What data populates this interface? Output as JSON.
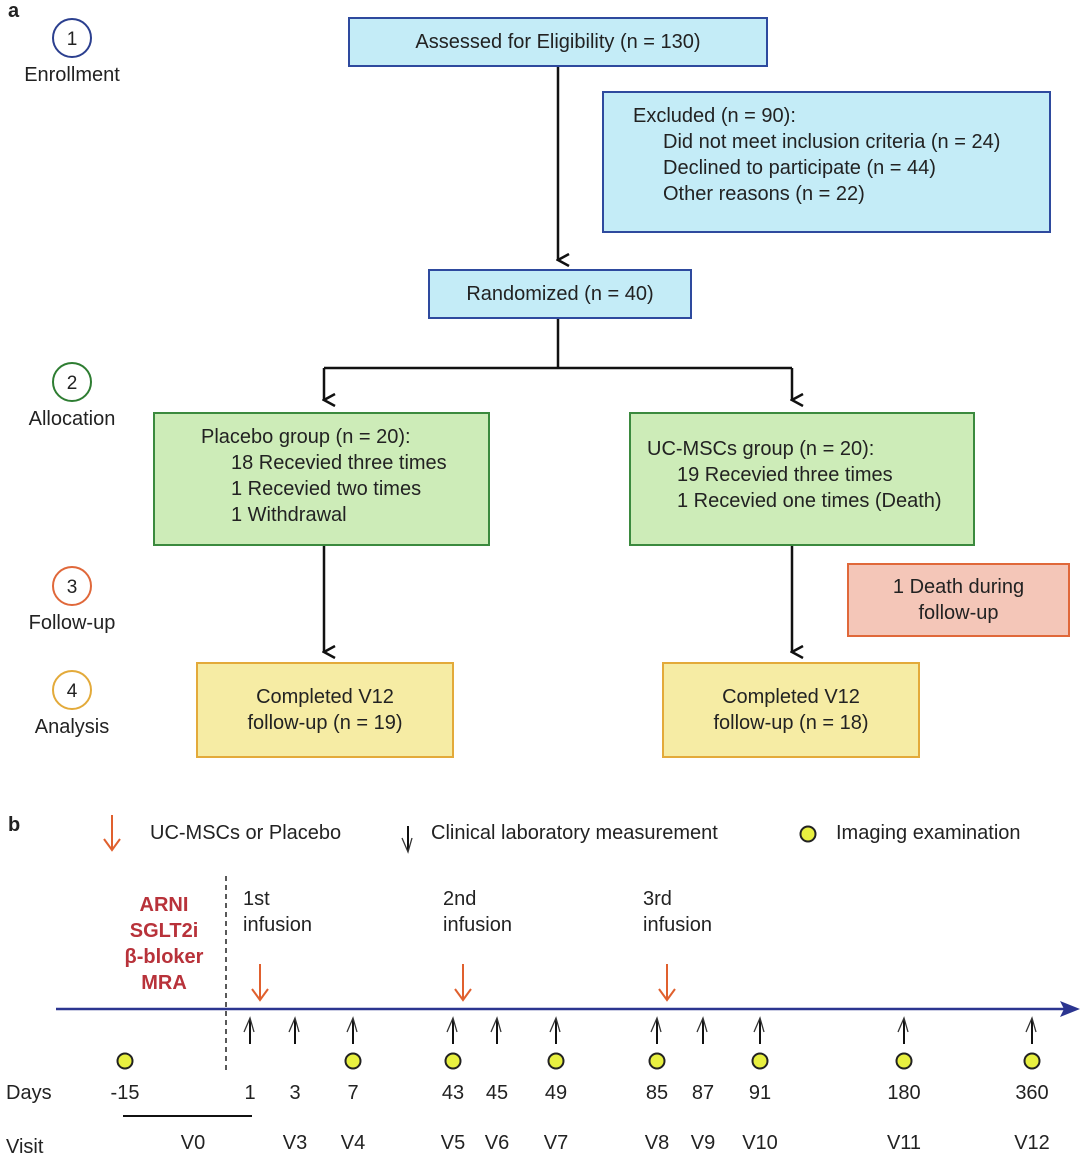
{
  "panel_a": {
    "label": "a",
    "steps": [
      {
        "num": "1",
        "label": "Enrollment",
        "color": "#2b3f8f"
      },
      {
        "num": "2",
        "label": "Allocation",
        "color": "#2e7d32"
      },
      {
        "num": "3",
        "label": "Follow-up",
        "color": "#e0683a"
      },
      {
        "num": "4",
        "label": "Analysis",
        "color": "#e3aa3a"
      }
    ],
    "assessed": "Assessed for Eligibility (n = 130)",
    "excluded": {
      "title": "Excluded (n = 90):",
      "lines": [
        "Did not meet inclusion criteria (n = 24)",
        "Declined to participate (n = 44)",
        "Other reasons (n = 22)"
      ]
    },
    "randomized": "Randomized (n = 40)",
    "placebo": {
      "title": "Placebo group (n = 20):",
      "lines": [
        "18 Recevied three times",
        "1 Recevied two times",
        "1 Withdrawal"
      ]
    },
    "ucmsc": {
      "title": "UC-MSCs group (n = 20):",
      "lines": [
        "19 Recevied three times",
        "1 Recevied one times (Death)"
      ]
    },
    "death": [
      "1 Death during",
      "follow-up"
    ],
    "placebo_completed": [
      "Completed V12",
      "follow-up (n = 19)"
    ],
    "ucmsc_completed": [
      "Completed V12",
      "follow-up (n = 18)"
    ]
  },
  "panel_b": {
    "label": "b",
    "legend": {
      "infusion": "UC-MSCs or Placebo",
      "lab": "Clinical laboratory measurement",
      "imaging": "Imaging examination"
    },
    "drugs": [
      "ARNI",
      "SGLT2i",
      "β-bloker",
      "MRA"
    ],
    "infusions": [
      {
        "line1": "1st",
        "line2": "infusion",
        "day": "1"
      },
      {
        "line1": "2nd",
        "line2": "infusion",
        "day": "43"
      },
      {
        "line1": "3rd",
        "line2": "infusion",
        "day": "85"
      }
    ],
    "days_label": "Days",
    "visit_label": "Visit",
    "timepoints": [
      {
        "day": "-15",
        "visit": "",
        "lab": false,
        "imaging": true
      },
      {
        "day": "1",
        "visit": "",
        "lab": true,
        "imaging": false
      },
      {
        "day": "3",
        "visit": "V3",
        "lab": true,
        "imaging": false
      },
      {
        "day": "7",
        "visit": "V4",
        "lab": true,
        "imaging": true
      },
      {
        "day": "43",
        "visit": "V5",
        "lab": true,
        "imaging": true
      },
      {
        "day": "45",
        "visit": "V6",
        "lab": true,
        "imaging": false
      },
      {
        "day": "49",
        "visit": "V7",
        "lab": true,
        "imaging": true
      },
      {
        "day": "85",
        "visit": "V8",
        "lab": true,
        "imaging": true
      },
      {
        "day": "87",
        "visit": "V9",
        "lab": true,
        "imaging": false
      },
      {
        "day": "91",
        "visit": "V10",
        "lab": true,
        "imaging": true
      },
      {
        "day": "180",
        "visit": "V11",
        "lab": true,
        "imaging": true
      },
      {
        "day": "360",
        "visit": "V12",
        "lab": true,
        "imaging": true
      }
    ],
    "v0_label": "V0",
    "colors": {
      "axis": "#2b3590",
      "infusion": "#e0602e",
      "imaging": "#e8f040",
      "drugs": "#b8323a"
    }
  }
}
